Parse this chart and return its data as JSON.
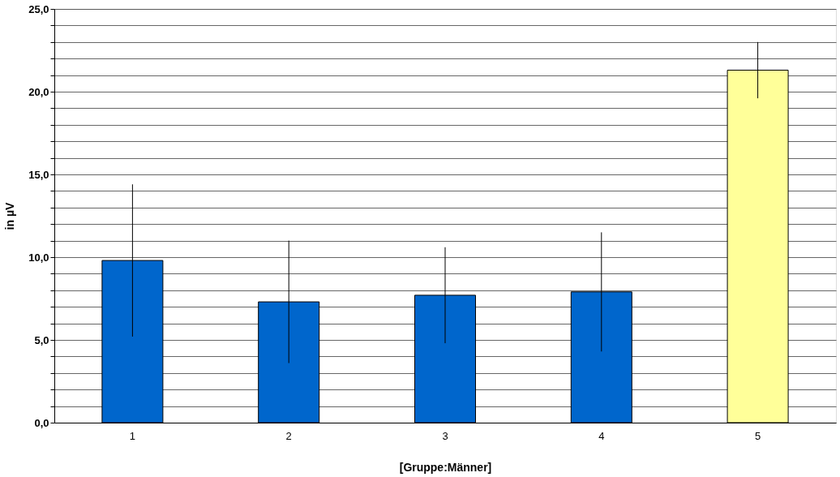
{
  "chart_data": {
    "type": "bar",
    "xlabel": "[Gruppe:Männer]",
    "ylabel": "in µV",
    "categories": [
      "1",
      "2",
      "3",
      "4",
      "5"
    ],
    "values": [
      9.8,
      7.3,
      7.7,
      7.9,
      21.3
    ],
    "colors": [
      "#0066cc",
      "#0066cc",
      "#0066cc",
      "#0066cc",
      "#ffff99"
    ],
    "errors": [
      4.6,
      3.7,
      2.9,
      3.6,
      1.7
    ],
    "ylim": [
      0,
      25
    ],
    "yticks": [
      {
        "value": 0,
        "label": "0,0"
      },
      {
        "value": 1,
        "label": null
      },
      {
        "value": 2,
        "label": null
      },
      {
        "value": 3,
        "label": null
      },
      {
        "value": 4,
        "label": null
      },
      {
        "value": 5,
        "label": "5,0"
      },
      {
        "value": 6,
        "label": null
      },
      {
        "value": 7,
        "label": null
      },
      {
        "value": 8,
        "label": null
      },
      {
        "value": 9,
        "label": null
      },
      {
        "value": 10,
        "label": "10,0"
      },
      {
        "value": 11,
        "label": null
      },
      {
        "value": 12,
        "label": null
      },
      {
        "value": 13,
        "label": null
      },
      {
        "value": 14,
        "label": null
      },
      {
        "value": 15,
        "label": "15,0"
      },
      {
        "value": 16,
        "label": null
      },
      {
        "value": 17,
        "label": null
      },
      {
        "value": 18,
        "label": null
      },
      {
        "value": 19,
        "label": null
      },
      {
        "value": 20,
        "label": "20,0"
      },
      {
        "value": 21,
        "label": null
      },
      {
        "value": 22,
        "label": null
      },
      {
        "value": 23,
        "label": null
      },
      {
        "value": 24,
        "label": null
      },
      {
        "value": 25,
        "label": "25,0"
      }
    ],
    "grid": "y"
  }
}
